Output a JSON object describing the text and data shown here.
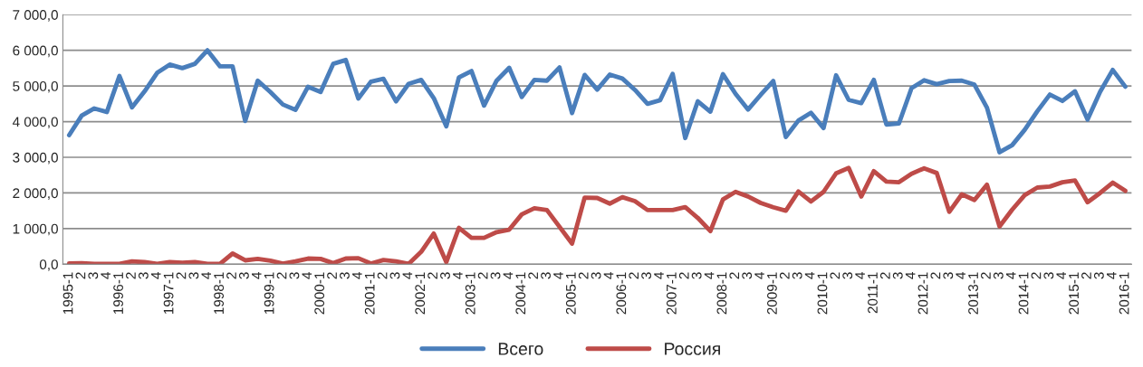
{
  "chart_data": {
    "type": "line",
    "categories": [
      "1995-1",
      "2",
      "3",
      "4",
      "1996-1",
      "2",
      "3",
      "4",
      "1997-1",
      "2",
      "3",
      "4",
      "1998-1",
      "2",
      "3",
      "4",
      "1999-1",
      "2",
      "3",
      "4",
      "2000-1",
      "2",
      "3",
      "4",
      "2001-1",
      "2",
      "3",
      "4",
      "2002-1",
      "2",
      "3",
      "4",
      "2003-1",
      "2",
      "3",
      "4",
      "2004-1",
      "2",
      "3",
      "4",
      "2005-1",
      "2",
      "3",
      "4",
      "2006-1",
      "2",
      "3",
      "4",
      "2007-1",
      "2",
      "3",
      "4",
      "2008-1",
      "2",
      "3",
      "4",
      "2009-1",
      "2",
      "3",
      "4",
      "2010-1",
      "2",
      "3",
      "4",
      "2011-1",
      "2",
      "3",
      "4",
      "2012-1",
      "2",
      "3",
      "4",
      "2013-1",
      "2",
      "3",
      "4",
      "2014-1",
      "2",
      "3",
      "4",
      "2015-1",
      "2",
      "3",
      "4",
      "2016-1"
    ],
    "series": [
      {
        "name": "Всего",
        "color": "#4a7ebb",
        "values": [
          3620,
          4170,
          4370,
          4270,
          5280,
          4400,
          4850,
          5370,
          5600,
          5500,
          5620,
          6000,
          5550,
          5550,
          4020,
          5150,
          4830,
          4480,
          4330,
          4980,
          4830,
          5620,
          5730,
          4650,
          5120,
          5200,
          4570,
          5060,
          5170,
          4660,
          3870,
          5240,
          5420,
          4450,
          5150,
          5510,
          4690,
          5170,
          5150,
          5520,
          4240,
          5310,
          4900,
          5320,
          5210,
          4890,
          4500,
          4600,
          5340,
          3540,
          4570,
          4280,
          5330,
          4780,
          4340,
          4750,
          5140,
          3570,
          4030,
          4250,
          3820,
          5300,
          4610,
          4520,
          5170,
          3920,
          3950,
          4940,
          5160,
          5050,
          5140,
          5150,
          5040,
          4390,
          3140,
          3340,
          3770,
          4290,
          4760,
          4580,
          4850,
          4060,
          4840,
          5450,
          4980
        ]
      },
      {
        "name": "Россия",
        "color": "#be4b48",
        "values": [
          20,
          30,
          10,
          10,
          10,
          80,
          60,
          10,
          60,
          40,
          60,
          10,
          10,
          300,
          110,
          150,
          100,
          20,
          80,
          160,
          150,
          30,
          160,
          170,
          20,
          120,
          80,
          10,
          350,
          860,
          60,
          1020,
          740,
          740,
          900,
          970,
          1400,
          1570,
          1520,
          1050,
          580,
          1870,
          1860,
          1700,
          1880,
          1770,
          1520,
          1520,
          1520,
          1600,
          1300,
          930,
          1820,
          2030,
          1900,
          1720,
          1600,
          1500,
          2040,
          1760,
          2030,
          2550,
          2700,
          1900,
          2610,
          2320,
          2300,
          2540,
          2690,
          2560,
          1470,
          1960,
          1800,
          2230,
          1060,
          1530,
          1940,
          2150,
          2180,
          2300,
          2350,
          1740,
          2000,
          2290,
          2060
        ]
      }
    ],
    "ylim": [
      0,
      7000
    ],
    "yticks": [
      {
        "value": 0,
        "label": "0,0"
      },
      {
        "value": 1000,
        "label": "1 000,0"
      },
      {
        "value": 2000,
        "label": "2 000,0"
      },
      {
        "value": 3000,
        "label": "3 000,0"
      },
      {
        "value": 4000,
        "label": "4 000,0"
      },
      {
        "value": 5000,
        "label": "5 000,0"
      },
      {
        "value": 6000,
        "label": "6 000,0"
      },
      {
        "value": 7000,
        "label": "7 000,0"
      }
    ],
    "grid": "y",
    "legend": "bottom",
    "marker": "none",
    "line_style": "solid"
  }
}
